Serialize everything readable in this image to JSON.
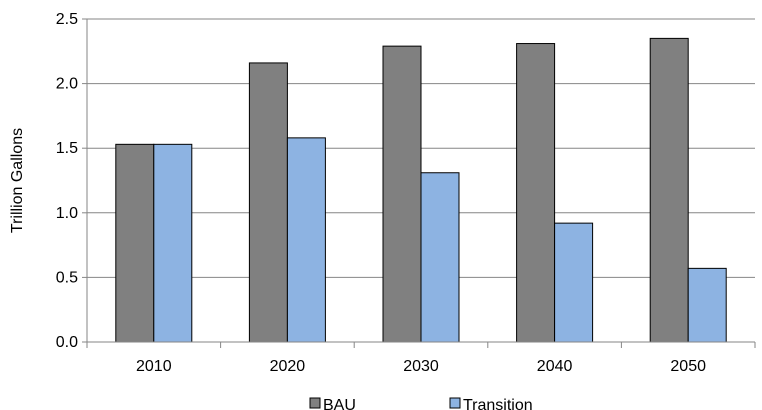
{
  "chart_data": {
    "type": "bar",
    "categories": [
      "2010",
      "2020",
      "2030",
      "2040",
      "2050"
    ],
    "series": [
      {
        "name": "BAU",
        "values": [
          1.53,
          2.16,
          2.29,
          2.31,
          2.35
        ],
        "color": "#808080"
      },
      {
        "name": "Transition",
        "values": [
          1.53,
          1.58,
          1.31,
          0.92,
          0.57
        ],
        "color": "#8db3e2"
      }
    ],
    "title": "",
    "xlabel": "",
    "ylabel": "Trillion Gallons",
    "ylim": [
      0,
      2.5
    ],
    "yticks": [
      "0.0",
      "0.5",
      "1.0",
      "1.5",
      "2.0",
      "2.5"
    ],
    "grid": true,
    "legend_position": "bottom"
  }
}
